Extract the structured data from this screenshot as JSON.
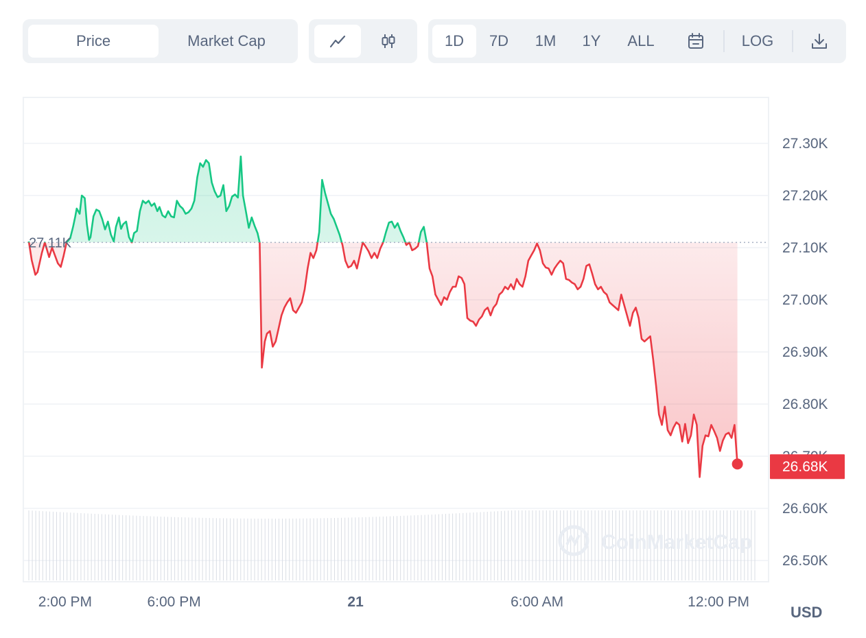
{
  "toolbar": {
    "data_toggle": [
      {
        "label": "Price",
        "active": true
      },
      {
        "label": "Market Cap",
        "active": false
      }
    ],
    "chart_type": [
      {
        "icon": "line-chart-icon",
        "active": true
      },
      {
        "icon": "candlestick-icon",
        "active": false
      }
    ],
    "ranges": [
      {
        "label": "1D",
        "active": true
      },
      {
        "label": "7D",
        "active": false
      },
      {
        "label": "1M",
        "active": false
      },
      {
        "label": "1Y",
        "active": false
      },
      {
        "label": "ALL",
        "active": false
      }
    ],
    "calendar_icon": "calendar-icon",
    "log_label": "LOG",
    "download_icon": "download-icon"
  },
  "chart_data": {
    "type": "area",
    "reference_value": 27110,
    "reference_label": "27.11K",
    "current_value": 26680,
    "current_label": "26.68K",
    "currency": "USD",
    "watermark": "CoinMarketCap",
    "ylim": [
      26450,
      27380
    ],
    "y_ticks": [
      {
        "value": 27300,
        "label": "27.30K"
      },
      {
        "value": 27200,
        "label": "27.20K"
      },
      {
        "value": 27100,
        "label": "27.10K"
      },
      {
        "value": 27000,
        "label": "27.00K"
      },
      {
        "value": 26900,
        "label": "26.90K"
      },
      {
        "value": 26800,
        "label": "26.80K"
      },
      {
        "value": 26700,
        "label": "26.70K"
      },
      {
        "value": 26600,
        "label": "26.60K"
      },
      {
        "value": 26500,
        "label": "26.50K"
      }
    ],
    "x_ticks": [
      {
        "t": 0.05,
        "label": "2:00 PM",
        "bold": false
      },
      {
        "t": 0.2,
        "label": "6:00 PM",
        "bold": false
      },
      {
        "t": 0.45,
        "label": "21",
        "bold": true
      },
      {
        "t": 0.7,
        "label": "6:00 AM",
        "bold": false
      },
      {
        "t": 0.95,
        "label": "12:00 PM",
        "bold": false
      }
    ],
    "colors": {
      "up": "#16c784",
      "down": "#ea3943",
      "grid": "#eff2f5",
      "ref": "#a6b0c3"
    },
    "series": [
      {
        "values": [
          [
            0,
            27112
          ],
          [
            0.004,
            27076
          ],
          [
            0.009,
            27048
          ],
          [
            0.012,
            27053
          ],
          [
            0.018,
            27090
          ],
          [
            0.022,
            27110
          ],
          [
            0.028,
            27082
          ],
          [
            0.032,
            27100
          ],
          [
            0.04,
            27070
          ],
          [
            0.044,
            27063
          ],
          [
            0.048,
            27085
          ],
          [
            0.052,
            27110
          ],
          [
            0.057,
            27118
          ],
          [
            0.061,
            27140
          ],
          [
            0.064,
            27160
          ],
          [
            0.066,
            27175
          ],
          [
            0.07,
            27165
          ],
          [
            0.073,
            27200
          ],
          [
            0.077,
            27195
          ],
          [
            0.08,
            27145
          ],
          [
            0.083,
            27115
          ],
          [
            0.085,
            27120
          ],
          [
            0.089,
            27160
          ],
          [
            0.093,
            27173
          ],
          [
            0.097,
            27170
          ],
          [
            0.101,
            27155
          ],
          [
            0.105,
            27135
          ],
          [
            0.109,
            27150
          ],
          [
            0.113,
            27125
          ],
          [
            0.117,
            27112
          ],
          [
            0.12,
            27140
          ],
          [
            0.124,
            27158
          ],
          [
            0.127,
            27136
          ],
          [
            0.13,
            27145
          ],
          [
            0.134,
            27150
          ],
          [
            0.138,
            27120
          ],
          [
            0.142,
            27110
          ],
          [
            0.145,
            27128
          ],
          [
            0.149,
            27132
          ],
          [
            0.153,
            27170
          ],
          [
            0.157,
            27190
          ],
          [
            0.161,
            27185
          ],
          [
            0.165,
            27190
          ],
          [
            0.169,
            27180
          ],
          [
            0.173,
            27185
          ],
          [
            0.177,
            27170
          ],
          [
            0.18,
            27178
          ],
          [
            0.184,
            27162
          ],
          [
            0.188,
            27158
          ],
          [
            0.192,
            27170
          ],
          [
            0.196,
            27160
          ],
          [
            0.2,
            27158
          ],
          [
            0.204,
            27190
          ],
          [
            0.208,
            27180
          ],
          [
            0.212,
            27175
          ],
          [
            0.216,
            27165
          ],
          [
            0.22,
            27168
          ],
          [
            0.224,
            27175
          ],
          [
            0.228,
            27190
          ],
          [
            0.232,
            27235
          ],
          [
            0.236,
            27262
          ],
          [
            0.24,
            27255
          ],
          [
            0.244,
            27268
          ],
          [
            0.248,
            27262
          ],
          [
            0.252,
            27225
          ],
          [
            0.256,
            27208
          ],
          [
            0.26,
            27197
          ],
          [
            0.264,
            27200
          ],
          [
            0.268,
            27220
          ],
          [
            0.272,
            27170
          ],
          [
            0.276,
            27180
          ],
          [
            0.28,
            27198
          ],
          [
            0.284,
            27202
          ],
          [
            0.288,
            27196
          ],
          [
            0.292,
            27275
          ],
          [
            0.295,
            27200
          ],
          [
            0.299,
            27170
          ],
          [
            0.303,
            27138
          ],
          [
            0.307,
            27158
          ],
          [
            0.311,
            27142
          ],
          [
            0.315,
            27128
          ],
          [
            0.318,
            27110
          ],
          [
            0.321,
            26870
          ],
          [
            0.325,
            26920
          ],
          [
            0.328,
            26935
          ],
          [
            0.332,
            26940
          ],
          [
            0.336,
            26910
          ],
          [
            0.34,
            26920
          ],
          [
            0.344,
            26945
          ],
          [
            0.348,
            26970
          ],
          [
            0.352,
            26985
          ],
          [
            0.356,
            26995
          ],
          [
            0.36,
            27003
          ],
          [
            0.364,
            26980
          ],
          [
            0.368,
            26975
          ],
          [
            0.372,
            26985
          ],
          [
            0.376,
            26995
          ],
          [
            0.38,
            27020
          ],
          [
            0.384,
            27060
          ],
          [
            0.388,
            27090
          ],
          [
            0.392,
            27080
          ],
          [
            0.396,
            27095
          ],
          [
            0.4,
            27130
          ],
          [
            0.404,
            27230
          ],
          [
            0.408,
            27205
          ],
          [
            0.412,
            27185
          ],
          [
            0.416,
            27165
          ],
          [
            0.42,
            27155
          ],
          [
            0.424,
            27140
          ],
          [
            0.428,
            27125
          ],
          [
            0.432,
            27105
          ],
          [
            0.436,
            27075
          ],
          [
            0.44,
            27062
          ],
          [
            0.444,
            27065
          ],
          [
            0.448,
            27075
          ],
          [
            0.452,
            27060
          ],
          [
            0.456,
            27085
          ],
          [
            0.46,
            27110
          ],
          [
            0.464,
            27102
          ],
          [
            0.468,
            27093
          ],
          [
            0.472,
            27080
          ],
          [
            0.476,
            27090
          ],
          [
            0.48,
            27080
          ],
          [
            0.484,
            27098
          ],
          [
            0.488,
            27110
          ],
          [
            0.492,
            27130
          ],
          [
            0.496,
            27148
          ],
          [
            0.5,
            27150
          ],
          [
            0.504,
            27138
          ],
          [
            0.508,
            27147
          ],
          [
            0.512,
            27132
          ],
          [
            0.516,
            27120
          ],
          [
            0.52,
            27105
          ],
          [
            0.524,
            27110
          ],
          [
            0.528,
            27095
          ],
          [
            0.532,
            27098
          ],
          [
            0.536,
            27103
          ],
          [
            0.54,
            27130
          ],
          [
            0.544,
            27140
          ],
          [
            0.548,
            27110
          ],
          [
            0.552,
            27060
          ],
          [
            0.556,
            27045
          ],
          [
            0.56,
            27010
          ],
          [
            0.564,
            27000
          ],
          [
            0.568,
            26990
          ],
          [
            0.572,
            27005
          ],
          [
            0.576,
            27000
          ],
          [
            0.58,
            27015
          ],
          [
            0.584,
            27025
          ],
          [
            0.588,
            27025
          ],
          [
            0.592,
            27045
          ],
          [
            0.596,
            27042
          ],
          [
            0.6,
            27030
          ],
          [
            0.604,
            26965
          ],
          [
            0.608,
            26960
          ],
          [
            0.612,
            26958
          ],
          [
            0.616,
            26950
          ],
          [
            0.62,
            26962
          ],
          [
            0.624,
            26968
          ],
          [
            0.628,
            26980
          ],
          [
            0.632,
            26985
          ],
          [
            0.636,
            26970
          ],
          [
            0.64,
            26985
          ],
          [
            0.644,
            26992
          ],
          [
            0.648,
            27010
          ],
          [
            0.652,
            27015
          ],
          [
            0.656,
            27025
          ],
          [
            0.66,
            27020
          ],
          [
            0.664,
            27030
          ],
          [
            0.668,
            27020
          ],
          [
            0.672,
            27040
          ],
          [
            0.676,
            27030
          ],
          [
            0.68,
            27025
          ],
          [
            0.684,
            27045
          ],
          [
            0.688,
            27075
          ],
          [
            0.692,
            27085
          ],
          [
            0.696,
            27095
          ],
          [
            0.7,
            27108
          ],
          [
            0.704,
            27095
          ],
          [
            0.708,
            27070
          ],
          [
            0.712,
            27062
          ],
          [
            0.716,
            27060
          ],
          [
            0.72,
            27048
          ],
          [
            0.724,
            27060
          ],
          [
            0.728,
            27068
          ],
          [
            0.732,
            27075
          ],
          [
            0.736,
            27070
          ],
          [
            0.74,
            27040
          ],
          [
            0.744,
            27038
          ],
          [
            0.748,
            27033
          ],
          [
            0.752,
            27030
          ],
          [
            0.756,
            27020
          ],
          [
            0.76,
            27025
          ],
          [
            0.764,
            27040
          ],
          [
            0.768,
            27065
          ],
          [
            0.772,
            27068
          ],
          [
            0.776,
            27050
          ],
          [
            0.78,
            27030
          ],
          [
            0.784,
            27020
          ],
          [
            0.788,
            27025
          ],
          [
            0.792,
            27015
          ],
          [
            0.796,
            27010
          ],
          [
            0.8,
            26995
          ],
          [
            0.804,
            26990
          ],
          [
            0.808,
            26985
          ],
          [
            0.812,
            26980
          ],
          [
            0.816,
            27010
          ],
          [
            0.82,
            26990
          ],
          [
            0.824,
            26970
          ],
          [
            0.828,
            26950
          ],
          [
            0.832,
            26975
          ],
          [
            0.836,
            26985
          ],
          [
            0.84,
            26965
          ],
          [
            0.844,
            26925
          ],
          [
            0.848,
            26920
          ],
          [
            0.852,
            26925
          ],
          [
            0.856,
            26930
          ],
          [
            0.86,
            26885
          ],
          [
            0.864,
            26835
          ],
          [
            0.868,
            26780
          ],
          [
            0.872,
            26760
          ],
          [
            0.876,
            26795
          ],
          [
            0.88,
            26750
          ],
          [
            0.884,
            26740
          ],
          [
            0.888,
            26755
          ],
          [
            0.892,
            26765
          ],
          [
            0.896,
            26760
          ],
          [
            0.9,
            26728
          ],
          [
            0.904,
            26762
          ],
          [
            0.908,
            26725
          ],
          [
            0.912,
            26740
          ],
          [
            0.916,
            26780
          ],
          [
            0.92,
            26760
          ],
          [
            0.924,
            26660
          ],
          [
            0.928,
            26720
          ],
          [
            0.932,
            26740
          ],
          [
            0.936,
            26738
          ],
          [
            0.94,
            26760
          ],
          [
            0.944,
            26748
          ],
          [
            0.948,
            26735
          ],
          [
            0.952,
            26710
          ],
          [
            0.956,
            26730
          ],
          [
            0.96,
            26742
          ],
          [
            0.964,
            26745
          ],
          [
            0.968,
            26735
          ],
          [
            0.972,
            26760
          ],
          [
            0.976,
            26685
          ]
        ]
      }
    ],
    "volume_bars": 210
  }
}
